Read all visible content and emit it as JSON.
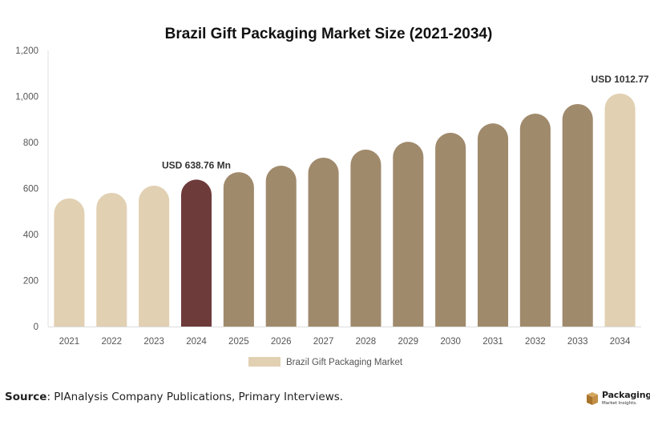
{
  "chart_data": {
    "type": "bar",
    "title": "Brazil Gift Packaging Market Size (2021-2034)",
    "xlabel": "",
    "ylabel": "",
    "categories": [
      "2021",
      "2022",
      "2023",
      "2024",
      "2025",
      "2026",
      "2027",
      "2028",
      "2029",
      "2030",
      "2031",
      "2032",
      "2033",
      "2034"
    ],
    "series": [
      {
        "name": "Brazil Gift Packaging Market",
        "values": [
          557,
          581,
          612,
          638.76,
          671,
          699,
          734,
          769,
          803,
          842,
          883,
          925,
          967,
          1012.77
        ]
      }
    ],
    "ylim": [
      0,
      1200
    ],
    "yticks": [
      0,
      200,
      400,
      600,
      800,
      1000,
      1200
    ],
    "ytick_labels": [
      "0",
      "200",
      "400",
      "600",
      "800",
      "1,000",
      "1,200"
    ],
    "grid": false,
    "legend": {
      "position": "bottom",
      "label": "Brazil Gift Packaging Market"
    },
    "annotations": [
      {
        "category": "2024",
        "text": "USD 638.76 Mn"
      },
      {
        "category": "2034",
        "text": "USD 1012.77"
      }
    ],
    "colors": {
      "historical": "#e2d0b3",
      "base_year": "#6e3b3b",
      "forecast": "#a08a6c",
      "final_year": "#e2d0b3",
      "axis": "#dddddd"
    },
    "bar_color_groups": [
      "historical",
      "historical",
      "historical",
      "base_year",
      "forecast",
      "forecast",
      "forecast",
      "forecast",
      "forecast",
      "forecast",
      "forecast",
      "forecast",
      "forecast",
      "final_year"
    ]
  },
  "footer": {
    "source_label": "Source",
    "source_text": ": PIAnalysis Company Publications, Primary Interviews."
  },
  "logo": {
    "name": "Packaging",
    "subtitle": "Market Insights."
  }
}
